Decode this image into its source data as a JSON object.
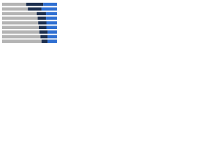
{
  "chart_data": {
    "type": "stacked-bar-horizontal",
    "categories": [
      null,
      null,
      null,
      null,
      null,
      null,
      null,
      null,
      null
    ],
    "xlim": [
      0,
      100
    ],
    "series": [
      {
        "color": "#b4b4b4",
        "values": [
          44,
          47,
          63,
          65,
          66,
          67,
          68,
          70,
          72
        ]
      },
      {
        "color": "#1c2f4f",
        "values": [
          31,
          25,
          17,
          15,
          15,
          14,
          15,
          13,
          11
        ]
      },
      {
        "color": "#2f6fd1",
        "values": [
          25,
          28,
          20,
          20,
          19,
          19,
          17,
          17,
          17
        ]
      }
    ]
  }
}
